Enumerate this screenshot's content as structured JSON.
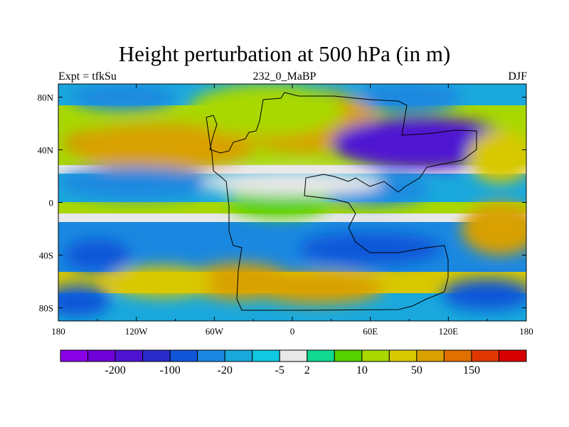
{
  "chart_data": {
    "type": "heatmap",
    "title": "Height perturbation at 500 hPa (in m)",
    "subtitle_left": "Expt = tfkSu",
    "subtitle_center": "232_0_MaBP",
    "subtitle_right": "DJF",
    "x_ticks": [
      "180",
      "120W",
      "60W",
      "0",
      "60E",
      "120E",
      "180"
    ],
    "x_tick_values": [
      -180,
      -120,
      -60,
      0,
      60,
      120,
      180
    ],
    "y_ticks": [
      "80N",
      "40N",
      "0",
      "40S",
      "80S"
    ],
    "y_tick_values": [
      80,
      40,
      0,
      -40,
      -80
    ],
    "xlim": [
      -180,
      180
    ],
    "ylim": [
      -90,
      90
    ],
    "colorbar": {
      "colors": [
        "#8a00e6",
        "#7000d8",
        "#4f14d2",
        "#2b2bcc",
        "#0f56d8",
        "#1a88e0",
        "#1aa8dc",
        "#10c8e0",
        "#e8e8e8",
        "#10d890",
        "#55d000",
        "#a8d800",
        "#d8c800",
        "#d8a000",
        "#e07000",
        "#e03800",
        "#d80000"
      ],
      "labels": [
        "-200",
        "-100",
        "-20",
        "-5",
        "2",
        "10",
        "50",
        "150"
      ],
      "label_after_box": [
        1,
        3,
        5,
        7,
        8,
        10,
        12,
        14
      ]
    },
    "regions": [
      {
        "lon": -120,
        "lat": 45,
        "r_lon": 55,
        "r_lat": 12,
        "level": 14
      },
      {
        "lon": -100,
        "lat": 42,
        "r_lon": 70,
        "r_lat": 18,
        "level": 13
      },
      {
        "lon": 0,
        "lat": 65,
        "r_lon": 30,
        "r_lat": 14,
        "level": 14
      },
      {
        "lon": 10,
        "lat": 62,
        "r_lon": 55,
        "r_lat": 24,
        "level": 13
      },
      {
        "lon": -20,
        "lat": 70,
        "r_lon": 60,
        "r_lat": 20,
        "level": 11
      },
      {
        "lon": -130,
        "lat": 80,
        "r_lon": 40,
        "r_lat": 10,
        "level": 5
      },
      {
        "lon": 110,
        "lat": 48,
        "r_lon": 50,
        "r_lat": 14,
        "level": 1
      },
      {
        "lon": 100,
        "lat": 45,
        "r_lon": 70,
        "r_lat": 20,
        "level": 2
      },
      {
        "lon": 90,
        "lat": 80,
        "r_lon": 40,
        "r_lat": 12,
        "level": 5
      },
      {
        "lon": -120,
        "lat": 15,
        "r_lon": 60,
        "r_lat": 12,
        "level": 5
      },
      {
        "lon": 60,
        "lat": 10,
        "r_lon": 45,
        "r_lat": 12,
        "level": 5
      },
      {
        "lon": -150,
        "lat": -40,
        "r_lon": 25,
        "r_lat": 12,
        "level": 4
      },
      {
        "lon": 60,
        "lat": -35,
        "r_lon": 55,
        "r_lat": 12,
        "level": 4
      },
      {
        "lon": -40,
        "lat": -60,
        "r_lon": 40,
        "r_lat": 14,
        "level": 13
      },
      {
        "lon": -100,
        "lat": -60,
        "r_lon": 40,
        "r_lat": 12,
        "level": 12
      },
      {
        "lon": 20,
        "lat": -65,
        "r_lon": 50,
        "r_lat": 12,
        "level": 13
      },
      {
        "lon": -165,
        "lat": -75,
        "r_lon": 25,
        "r_lat": 12,
        "level": 4
      },
      {
        "lon": 150,
        "lat": -70,
        "r_lon": 35,
        "r_lat": 12,
        "level": 4
      },
      {
        "lon": 160,
        "lat": -20,
        "r_lon": 30,
        "r_lat": 20,
        "level": 13
      },
      {
        "lon": -10,
        "lat": 0,
        "r_lon": 40,
        "r_lat": 12,
        "level": 10
      },
      {
        "lon": 160,
        "lat": 35,
        "r_lon": 25,
        "r_lat": 20,
        "level": 12
      },
      {
        "lon": 0,
        "lat": 15,
        "r_lon": 70,
        "r_lat": 10,
        "level": 8
      }
    ]
  }
}
